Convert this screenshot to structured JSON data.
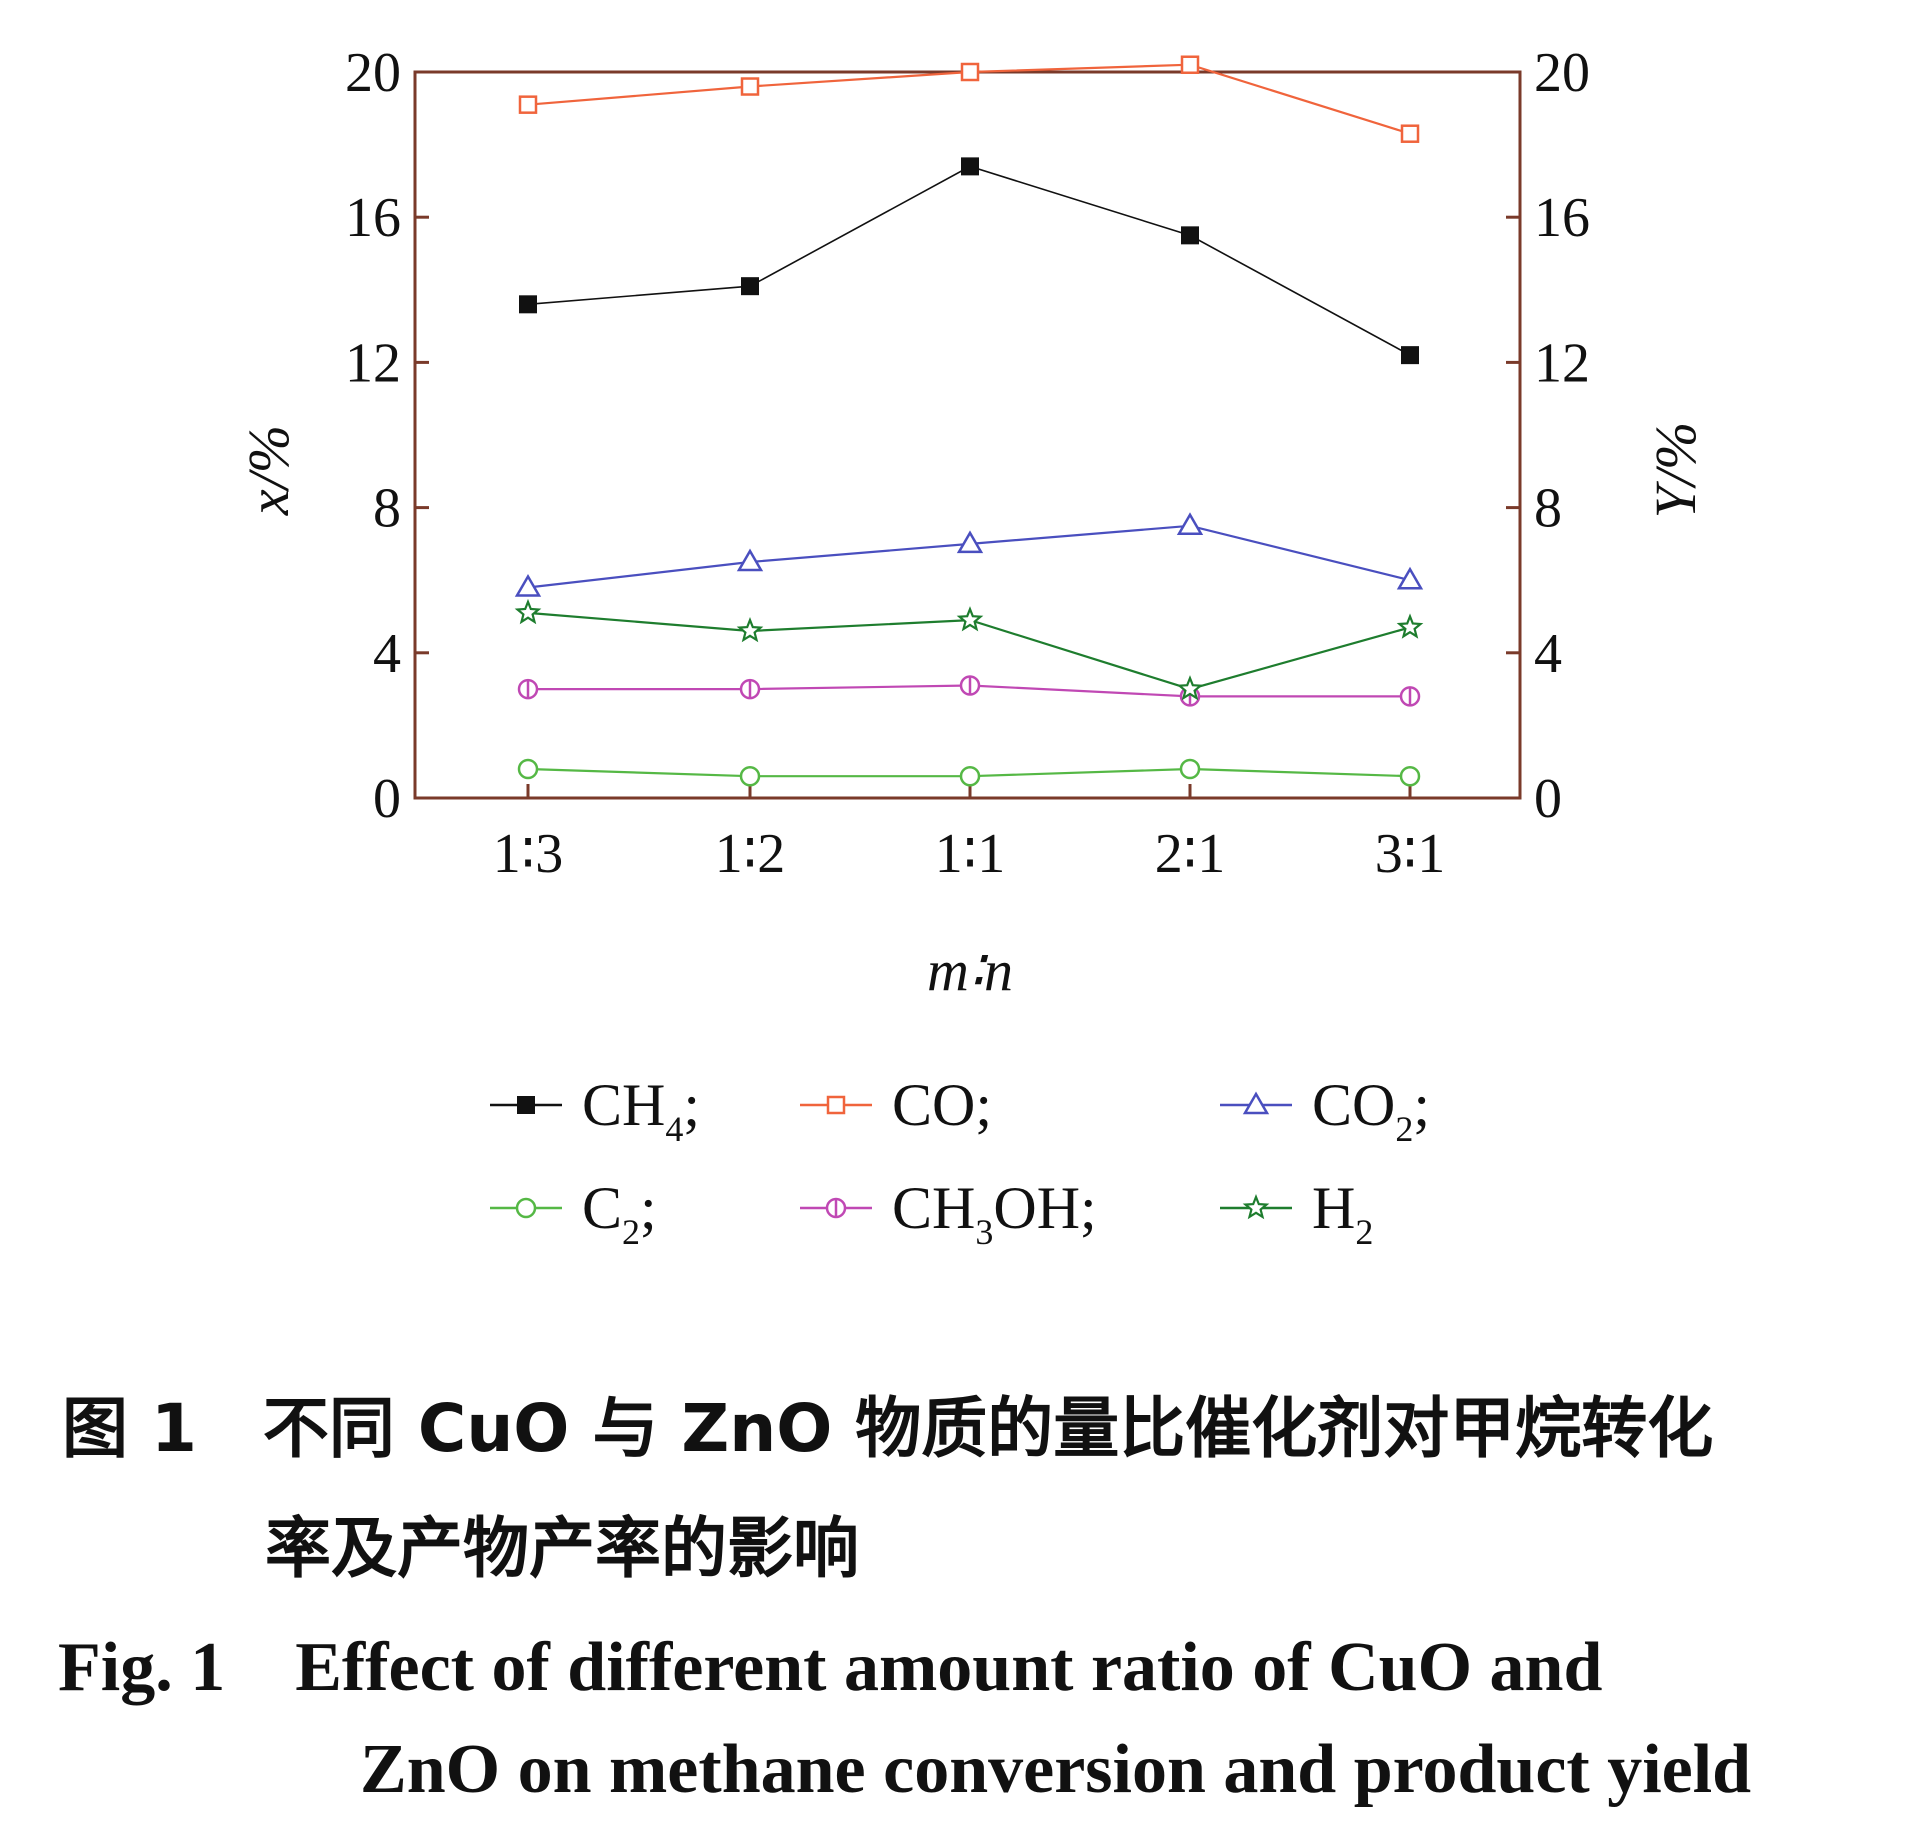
{
  "chart_data": {
    "type": "line",
    "categories": [
      "1:3",
      "1:2",
      "1:1",
      "2:1",
      "3:1"
    ],
    "xlabel": "m∶n",
    "ylabel_left": "x/%",
    "ylabel_right": "Y/%",
    "ylim": [
      0,
      20
    ],
    "yticks": [
      "0",
      "4",
      "8",
      "12",
      "16",
      "20"
    ],
    "grid": false,
    "legend_placement": "bottom",
    "series": [
      {
        "name": "CH4",
        "label": "CH",
        "sub": "4",
        "sep": ";",
        "color": "#111111",
        "marker": "filled-square",
        "values": [
          13.6,
          14.1,
          17.4,
          15.5,
          12.2
        ]
      },
      {
        "name": "CO",
        "label": "CO",
        "sub": "",
        "sep": ";",
        "color": "#f0643c",
        "marker": "open-square",
        "values": [
          19.1,
          19.6,
          20.0,
          20.2,
          18.3
        ]
      },
      {
        "name": "CO2",
        "label": "CO",
        "sub": "2",
        "sep": ";",
        "color": "#4a4fbf",
        "marker": "open-triangle",
        "values": [
          5.8,
          6.5,
          7.0,
          7.5,
          6.0
        ]
      },
      {
        "name": "C2",
        "label": "C",
        "sub": "2",
        "sep": ";",
        "color": "#55b845",
        "marker": "open-circle",
        "values": [
          0.8,
          0.6,
          0.6,
          0.8,
          0.6
        ]
      },
      {
        "name": "CH3OH",
        "label": "CH",
        "sub": "3",
        "tail": "OH",
        "sep": ";",
        "color": "#c048b4",
        "marker": "circle-bar",
        "values": [
          3.0,
          3.0,
          3.1,
          2.8,
          2.8
        ]
      },
      {
        "name": "H2",
        "label": "H",
        "sub": "2",
        "sep": "",
        "color": "#1e7d2e",
        "marker": "open-star",
        "values": [
          5.1,
          4.6,
          4.9,
          3.0,
          4.7
        ]
      }
    ]
  },
  "caption": {
    "zh_line1": "图 1　不同 CuO 与 ZnO 物质的量比催化剂对甲烷转化",
    "zh_line2": "率及产物产率的影响",
    "en_line1": "Fig. 1　Effect of different amount ratio of CuO and",
    "en_line2": "ZnO on methane conversion and product yield"
  }
}
